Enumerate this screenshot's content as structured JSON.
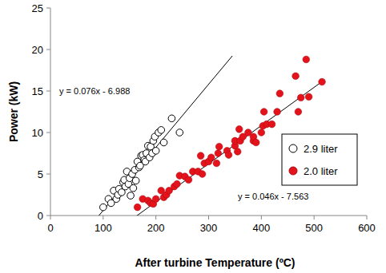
{
  "chart_data": {
    "type": "scatter",
    "x_label": "After turbine Temperature (ºC)",
    "y_label": "Power (kW)",
    "xlim": [
      0,
      600
    ],
    "xticks": [
      0,
      100,
      200,
      300,
      400,
      500,
      600
    ],
    "ylim": [
      0,
      25
    ],
    "yticks": [
      0,
      5,
      10,
      15,
      20,
      25
    ],
    "grid": false,
    "legend": "right",
    "series": [
      {
        "name": "2.9 liter",
        "color": "#000000",
        "marker": "open_circle",
        "x": [
          100,
          110,
          115,
          120,
          125,
          128,
          130,
          135,
          138,
          140,
          142,
          145,
          148,
          150,
          152,
          155,
          157,
          160,
          162,
          165,
          168,
          170,
          172,
          175,
          178,
          180,
          182,
          185,
          188,
          190,
          193,
          195,
          198,
          200,
          205,
          210,
          215,
          230,
          245
        ],
        "values": [
          1.0,
          2.0,
          1.5,
          3.0,
          2.0,
          2.5,
          3.2,
          2.8,
          4.0,
          4.3,
          3.5,
          5.3,
          3.8,
          4.5,
          2.4,
          5.0,
          3.3,
          5.5,
          4.2,
          6.5,
          5.8,
          6.0,
          7.2,
          7.3,
          6.7,
          6.5,
          7.5,
          8.4,
          7.0,
          8.3,
          7.5,
          9.0,
          9.5,
          7.8,
          10.0,
          10.3,
          8.8,
          11.7,
          10.0
        ],
        "trendline": {
          "slope": 0.076,
          "intercept": -6.988,
          "label": "y = 0.076x - 6.988",
          "x": [
            92,
            345
          ]
        }
      },
      {
        "name": "2.0 liter",
        "color": "#e3121b",
        "marker": "circle",
        "x": [
          165,
          175,
          185,
          190,
          195,
          200,
          210,
          215,
          220,
          225,
          235,
          240,
          245,
          255,
          262,
          270,
          280,
          285,
          288,
          292,
          300,
          305,
          315,
          318,
          320,
          335,
          338,
          350,
          350,
          355,
          358,
          360,
          365,
          375,
          385,
          385,
          390,
          400,
          403,
          405,
          410,
          420,
          430,
          435,
          465,
          470,
          475,
          485,
          490,
          515
        ],
        "values": [
          1.0,
          2.0,
          1.8,
          1.5,
          1.4,
          2.0,
          3.0,
          2.2,
          2.5,
          3.0,
          3.5,
          3.8,
          4.8,
          4.7,
          4.3,
          5.3,
          5.3,
          7.2,
          5.0,
          6.3,
          6.5,
          7.0,
          6.3,
          7.5,
          8.3,
          7.8,
          7.3,
          8.4,
          9.0,
          7.7,
          10.4,
          9.0,
          9.5,
          10.0,
          9.0,
          9.5,
          8.8,
          10.0,
          10.8,
          12.5,
          11.0,
          11.0,
          12.5,
          14.7,
          16.8,
          12.5,
          14.2,
          18.8,
          14.3,
          16.1
        ],
        "trendline": {
          "slope": 0.046,
          "intercept": -7.563,
          "label": "y = 0.046x - 7.563",
          "x": [
            164,
            520
          ]
        }
      }
    ]
  }
}
